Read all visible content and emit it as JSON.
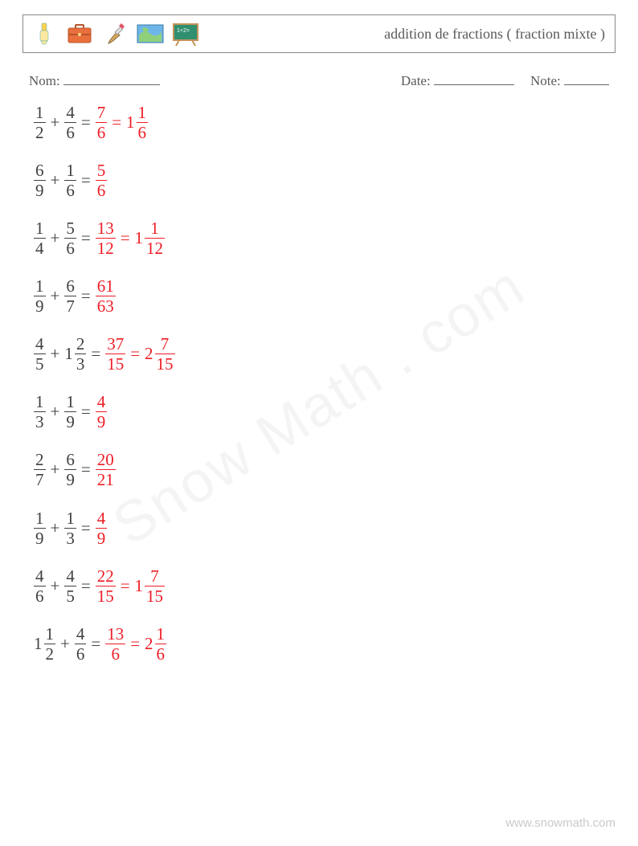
{
  "header": {
    "title": "addition de fractions ( fraction mixte )",
    "icons": [
      "highlighter-icon",
      "briefcase-icon",
      "paintbrush-icon",
      "map-icon",
      "chalkboard-icon"
    ]
  },
  "labels": {
    "name": "Nom:",
    "date": "Date:",
    "score": "Note:"
  },
  "blank_widths": {
    "name": 120,
    "date": 100,
    "score": 56
  },
  "colors": {
    "text": "#404040",
    "answer": "#ee1c25",
    "bar": "#404040",
    "answer_bar": "#ee1c25"
  },
  "font": {
    "problem_size": 21,
    "header_title_size": 18,
    "labels_size": 17
  },
  "watermark": "Snow Math . com",
  "footer": "www.snowmath.com",
  "problems": [
    {
      "terms": [
        {
          "type": "frac",
          "n": "1",
          "d": "2"
        },
        {
          "op": "+"
        },
        {
          "type": "frac",
          "n": "4",
          "d": "6"
        }
      ],
      "answers": [
        {
          "type": "frac",
          "n": "7",
          "d": "6"
        },
        {
          "type": "mixed",
          "w": "1",
          "n": "1",
          "d": "6"
        }
      ]
    },
    {
      "terms": [
        {
          "type": "frac",
          "n": "6",
          "d": "9"
        },
        {
          "op": "+"
        },
        {
          "type": "frac",
          "n": "1",
          "d": "6"
        }
      ],
      "answers": [
        {
          "type": "frac",
          "n": "5",
          "d": "6"
        }
      ]
    },
    {
      "terms": [
        {
          "type": "frac",
          "n": "1",
          "d": "4"
        },
        {
          "op": "+"
        },
        {
          "type": "frac",
          "n": "5",
          "d": "6"
        }
      ],
      "answers": [
        {
          "type": "frac",
          "n": "13",
          "d": "12"
        },
        {
          "type": "mixed",
          "w": "1",
          "n": "1",
          "d": "12"
        }
      ]
    },
    {
      "terms": [
        {
          "type": "frac",
          "n": "1",
          "d": "9"
        },
        {
          "op": "+"
        },
        {
          "type": "frac",
          "n": "6",
          "d": "7"
        }
      ],
      "answers": [
        {
          "type": "frac",
          "n": "61",
          "d": "63"
        }
      ]
    },
    {
      "terms": [
        {
          "type": "frac",
          "n": "4",
          "d": "5"
        },
        {
          "op": "+"
        },
        {
          "type": "mixed",
          "w": "1",
          "n": "2",
          "d": "3"
        }
      ],
      "answers": [
        {
          "type": "frac",
          "n": "37",
          "d": "15"
        },
        {
          "type": "mixed",
          "w": "2",
          "n": "7",
          "d": "15"
        }
      ]
    },
    {
      "terms": [
        {
          "type": "frac",
          "n": "1",
          "d": "3"
        },
        {
          "op": "+"
        },
        {
          "type": "frac",
          "n": "1",
          "d": "9"
        }
      ],
      "answers": [
        {
          "type": "frac",
          "n": "4",
          "d": "9"
        }
      ]
    },
    {
      "terms": [
        {
          "type": "frac",
          "n": "2",
          "d": "7"
        },
        {
          "op": "+"
        },
        {
          "type": "frac",
          "n": "6",
          "d": "9"
        }
      ],
      "answers": [
        {
          "type": "frac",
          "n": "20",
          "d": "21"
        }
      ]
    },
    {
      "terms": [
        {
          "type": "frac",
          "n": "1",
          "d": "9"
        },
        {
          "op": "+"
        },
        {
          "type": "frac",
          "n": "1",
          "d": "3"
        }
      ],
      "answers": [
        {
          "type": "frac",
          "n": "4",
          "d": "9"
        }
      ]
    },
    {
      "terms": [
        {
          "type": "frac",
          "n": "4",
          "d": "6"
        },
        {
          "op": "+"
        },
        {
          "type": "frac",
          "n": "4",
          "d": "5"
        }
      ],
      "answers": [
        {
          "type": "frac",
          "n": "22",
          "d": "15"
        },
        {
          "type": "mixed",
          "w": "1",
          "n": "7",
          "d": "15"
        }
      ]
    },
    {
      "terms": [
        {
          "type": "mixed",
          "w": "1",
          "n": "1",
          "d": "2"
        },
        {
          "op": "+"
        },
        {
          "type": "frac",
          "n": "4",
          "d": "6"
        }
      ],
      "answers": [
        {
          "type": "frac",
          "n": "13",
          "d": "6"
        },
        {
          "type": "mixed",
          "w": "2",
          "n": "1",
          "d": "6"
        }
      ]
    }
  ]
}
